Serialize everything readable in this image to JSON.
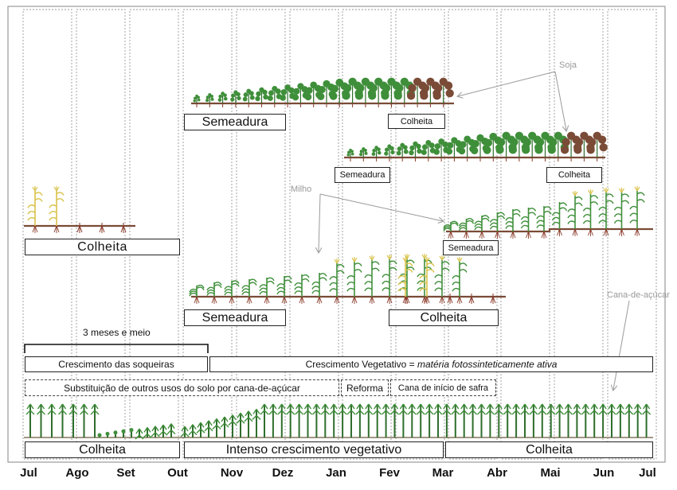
{
  "months": [
    "Jul",
    "Ago",
    "Set",
    "Out",
    "Nov",
    "Dez",
    "Jan",
    "Fev",
    "Mar",
    "Abr",
    "Mai",
    "Jun",
    "Jul"
  ],
  "crops": {
    "soja": "Soja",
    "milho": "Milho",
    "cana": "Cana-de-açúcar"
  },
  "labels": {
    "colheita": "Colheita",
    "semeadura": "Semeadura",
    "tres_meses": "3 meses e meio",
    "crescimento_soqueiras": "Crescimento das soqueiras",
    "crescimento_vegetativo": "Crescimento Vegetativo = ",
    "materia_ativa": "matéria fotossinteticamente ativa",
    "substituicao": "Substituição de outros usos do solo por cana-de-açúcar",
    "reforma": "Reforma",
    "cana_inicio_safra": "Cana de início de safra",
    "intenso_crescimento": "Intenso crescimento vegetativo"
  },
  "colors": {
    "leaf_green": "#3f8f3a",
    "dark_green": "#2f6e2c",
    "yellow": "#d8c24a",
    "brown": "#7a4b36",
    "root": "#8b3a2a",
    "grid": "#9a9a9a",
    "arrow": "#9a9a9a"
  }
}
